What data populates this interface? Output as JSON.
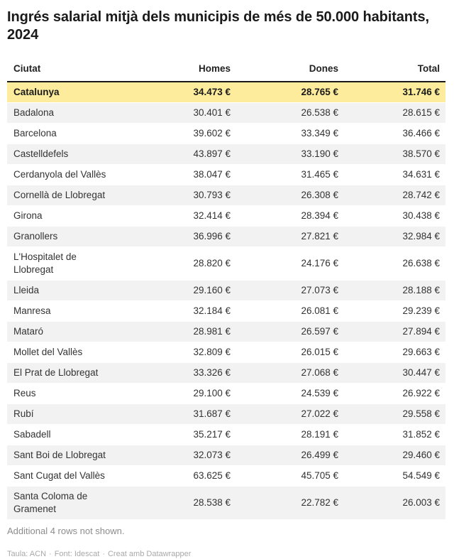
{
  "header": {
    "title": "Ingrés salarial mitjà dels municipis de més de 50.000 habitants, 2024"
  },
  "table": {
    "columns": [
      "Ciutat",
      "Homes",
      "Dones",
      "Total"
    ],
    "rows": [
      {
        "city": "Catalunya",
        "homes": "34.473 €",
        "dones": "28.765 €",
        "total": "31.746 €",
        "highlight": true
      },
      {
        "city": "Badalona",
        "homes": "30.401 €",
        "dones": "26.538 €",
        "total": "28.615 €",
        "highlight": false
      },
      {
        "city": "Barcelona",
        "homes": "39.602 €",
        "dones": "33.349 €",
        "total": "36.466 €",
        "highlight": false
      },
      {
        "city": "Castelldefels",
        "homes": "43.897 €",
        "dones": "33.190 €",
        "total": "38.570 €",
        "highlight": false
      },
      {
        "city": "Cerdanyola del Vallès",
        "homes": "38.047 €",
        "dones": "31.465 €",
        "total": "34.631 €",
        "highlight": false
      },
      {
        "city": "Cornellà de Llobregat",
        "homes": "30.793 €",
        "dones": "26.308 €",
        "total": "28.742 €",
        "highlight": false
      },
      {
        "city": "Girona",
        "homes": "32.414 €",
        "dones": "28.394 €",
        "total": "30.438 €",
        "highlight": false
      },
      {
        "city": "Granollers",
        "homes": "36.996 €",
        "dones": "27.821 €",
        "total": "32.984 €",
        "highlight": false
      },
      {
        "city": "L'Hospitalet de Llobregat",
        "homes": "28.820 €",
        "dones": "24.176 €",
        "total": "26.638 €",
        "highlight": false
      },
      {
        "city": "Lleida",
        "homes": "29.160 €",
        "dones": "27.073 €",
        "total": "28.188 €",
        "highlight": false
      },
      {
        "city": "Manresa",
        "homes": "32.184 €",
        "dones": "26.081 €",
        "total": "29.239 €",
        "highlight": false
      },
      {
        "city": "Mataró",
        "homes": "28.981 €",
        "dones": "26.597 €",
        "total": "27.894 €",
        "highlight": false
      },
      {
        "city": "Mollet del Vallès",
        "homes": "32.809 €",
        "dones": "26.015 €",
        "total": "29.663 €",
        "highlight": false
      },
      {
        "city": "El Prat de Llobregat",
        "homes": "33.326 €",
        "dones": "27.068 €",
        "total": "30.447 €",
        "highlight": false
      },
      {
        "city": "Reus",
        "homes": "29.100 €",
        "dones": "24.539 €",
        "total": "26.922 €",
        "highlight": false
      },
      {
        "city": "Rubí",
        "homes": "31.687 €",
        "dones": "27.022 €",
        "total": "29.558 €",
        "highlight": false
      },
      {
        "city": "Sabadell",
        "homes": "35.217 €",
        "dones": "28.191 €",
        "total": "31.852 €",
        "highlight": false
      },
      {
        "city": "Sant Boi de Llobregat",
        "homes": "32.073 €",
        "dones": "26.499 €",
        "total": "29.460 €",
        "highlight": false
      },
      {
        "city": "Sant Cugat del Vallès",
        "homes": "63.625 €",
        "dones": "45.705 €",
        "total": "54.549 €",
        "highlight": false
      },
      {
        "city": "Santa Coloma de Gramenet",
        "homes": "28.538 €",
        "dones": "22.782 €",
        "total": "26.003 €",
        "highlight": false
      }
    ]
  },
  "footer": {
    "note": "Additional 4 rows not shown.",
    "attribution": {
      "parts": [
        "Taula: ACN",
        "Font: Idescat",
        "Creat amb Datawrapper"
      ],
      "separator": "·"
    }
  },
  "colors": {
    "highlight_row": "#fcec9c",
    "stripe": "#f2f2f2",
    "header_border": "#1a1a1a",
    "body_text": "#333333",
    "note_text": "#8d8d8d",
    "attribution_text": "#a9a9a9"
  },
  "chart_data": {
    "type": "table",
    "title": "Ingrés salarial mitjà dels municipis de més de 50.000 habitants, 2024",
    "columns": [
      "Ciutat",
      "Homes",
      "Dones",
      "Total"
    ],
    "unit": "€",
    "highlighted_row": "Catalunya",
    "rows": [
      [
        "Catalunya",
        34473,
        28765,
        31746
      ],
      [
        "Badalona",
        30401,
        26538,
        28615
      ],
      [
        "Barcelona",
        39602,
        33349,
        36466
      ],
      [
        "Castelldefels",
        43897,
        33190,
        38570
      ],
      [
        "Cerdanyola del Vallès",
        38047,
        31465,
        34631
      ],
      [
        "Cornellà de Llobregat",
        30793,
        26308,
        28742
      ],
      [
        "Girona",
        32414,
        28394,
        30438
      ],
      [
        "Granollers",
        36996,
        27821,
        32984
      ],
      [
        "L'Hospitalet de Llobregat",
        28820,
        24176,
        26638
      ],
      [
        "Lleida",
        29160,
        27073,
        28188
      ],
      [
        "Manresa",
        32184,
        26081,
        29239
      ],
      [
        "Mataró",
        28981,
        26597,
        27894
      ],
      [
        "Mollet del Vallès",
        32809,
        26015,
        29663
      ],
      [
        "El Prat de Llobregat",
        33326,
        27068,
        30447
      ],
      [
        "Reus",
        29100,
        24539,
        26922
      ],
      [
        "Rubí",
        31687,
        27022,
        29558
      ],
      [
        "Sabadell",
        35217,
        28191,
        31852
      ],
      [
        "Sant Boi de Llobregat",
        32073,
        26499,
        29460
      ],
      [
        "Sant Cugat del Vallès",
        63625,
        45705,
        54549
      ],
      [
        "Santa Coloma de Gramenet",
        28538,
        22782,
        26003
      ]
    ],
    "notes": "Additional 4 rows not shown.",
    "source": "Taula: ACN · Font: Idescat · Creat amb Datawrapper"
  }
}
